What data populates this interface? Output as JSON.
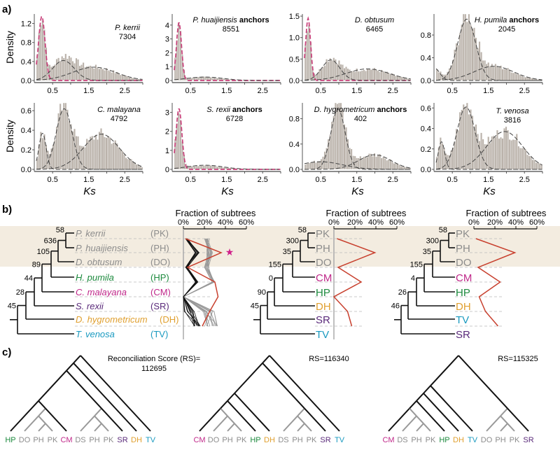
{
  "panel_labels": {
    "a": "a)",
    "b": "b)",
    "c": "c)"
  },
  "colors": {
    "bar": "#bab2aa",
    "fit_red": "#c8407a",
    "fit_dark": "#444444",
    "highlight_band": "#f3ece0",
    "PK": "#8c8c8c",
    "PH": "#8c8c8c",
    "DO": "#8c8c8c",
    "DS": "#8c8c8c",
    "HP": "#1d8a3e",
    "CM": "#c0288a",
    "SR": "#5a2a7a",
    "DH": "#e0a030",
    "TV": "#1a9ac0",
    "red_line": "#c8402e",
    "star": "#d0208a"
  },
  "chart_data": [
    {
      "type": "bar",
      "species": "P. kerrii",
      "suffix": "",
      "count": "7304",
      "ylabel": "Density",
      "xlabel": "",
      "xlim": [
        0.05,
        3.0
      ],
      "ylim": [
        0,
        1.4
      ],
      "yticks": [
        "0.0",
        "0.4",
        "0.8",
        "1.2"
      ],
      "xticks": [
        "0.5",
        "1.5",
        "2.5"
      ],
      "components": [
        {
          "mean": 0.2,
          "sd": 0.09,
          "peak": 1.35,
          "color": "red"
        },
        {
          "mean": 0.8,
          "sd": 0.3,
          "peak": 0.42,
          "color": "dark"
        },
        {
          "mean": 1.65,
          "sd": 0.6,
          "peak": 0.28,
          "color": "dark"
        }
      ]
    },
    {
      "type": "bar",
      "species": "P. huaijiensis",
      "suffix": "anchors",
      "count": "8551",
      "ylabel": "",
      "xlabel": "",
      "xlim": [
        0.05,
        3.0
      ],
      "ylim": [
        0,
        4.8
      ],
      "yticks": [
        "0",
        "1",
        "2",
        "3",
        "4"
      ],
      "xticks": [
        "0.5",
        "1.5",
        "2.5"
      ],
      "components": [
        {
          "mean": 0.18,
          "sd": 0.07,
          "peak": 4.2,
          "color": "red"
        },
        {
          "mean": 0.9,
          "sd": 0.5,
          "peak": 0.25,
          "color": "dark"
        }
      ]
    },
    {
      "type": "bar",
      "species": "D. obtusum",
      "suffix": "",
      "count": "6465",
      "ylabel": "",
      "xlabel": "",
      "xlim": [
        0.05,
        3.0
      ],
      "ylim": [
        0,
        1.55
      ],
      "yticks": [
        "0.0",
        "0.5",
        "1.0",
        "1.5"
      ],
      "xticks": [
        "0.5",
        "1.5",
        "2.5"
      ],
      "components": [
        {
          "mean": 0.15,
          "sd": 0.07,
          "peak": 1.45,
          "color": "red"
        },
        {
          "mean": 0.78,
          "sd": 0.25,
          "peak": 0.48,
          "color": "dark"
        },
        {
          "mean": 1.8,
          "sd": 0.6,
          "peak": 0.27,
          "color": "dark"
        }
      ]
    },
    {
      "type": "bar",
      "species": "H. pumila",
      "suffix": "anchors",
      "count": "2045",
      "ylabel": "",
      "xlabel": "",
      "xlim": [
        0.05,
        3.0
      ],
      "ylim": [
        0,
        1.17
      ],
      "yticks": [
        "0.0",
        "0.4",
        "0.8"
      ],
      "xticks": [
        "0.5",
        "1.5",
        "2.5"
      ],
      "components": [
        {
          "mean": 0.0,
          "sd": 0.15,
          "peak": 0.22,
          "color": "dark"
        },
        {
          "mean": 0.9,
          "sd": 0.25,
          "peak": 1.08,
          "color": "dark"
        },
        {
          "mean": 1.65,
          "sd": 0.55,
          "peak": 0.25,
          "color": "dark"
        }
      ]
    },
    {
      "type": "bar",
      "species": "C. malayana",
      "suffix": "",
      "count": "4792",
      "ylabel": "Density",
      "xlabel": "Ks",
      "xlim": [
        0.05,
        3.0
      ],
      "ylim": [
        0,
        0.68
      ],
      "yticks": [
        "0.0",
        "0.2",
        "0.4",
        "0.6"
      ],
      "xticks": [
        "0.5",
        "1.5",
        "2.5"
      ],
      "components": [
        {
          "mean": 0.22,
          "sd": 0.1,
          "peak": 0.37,
          "color": "dark"
        },
        {
          "mean": 0.82,
          "sd": 0.22,
          "peak": 0.62,
          "color": "dark"
        },
        {
          "mean": 1.85,
          "sd": 0.5,
          "peak": 0.36,
          "color": "dark"
        }
      ]
    },
    {
      "type": "bar",
      "species": "S. rexii",
      "suffix": "anchors",
      "count": "6728",
      "ylabel": "",
      "xlabel": "Ks",
      "xlim": [
        0.05,
        3.0
      ],
      "ylim": [
        0,
        3.5
      ],
      "yticks": [
        "0",
        "1",
        "2",
        "3"
      ],
      "xticks": [
        "0.5",
        "1.5",
        "2.5"
      ],
      "components": [
        {
          "mean": 0.18,
          "sd": 0.08,
          "peak": 3.2,
          "color": "red"
        },
        {
          "mean": 0.9,
          "sd": 0.5,
          "peak": 0.22,
          "color": "dark"
        }
      ]
    },
    {
      "type": "bar",
      "species": "D. hygrometricum",
      "suffix": "anchors",
      "count": "402",
      "ylabel": "",
      "xlabel": "Ks",
      "xlim": [
        0.05,
        3.0
      ],
      "ylim": [
        0,
        1.05
      ],
      "yticks": [
        "0.0",
        "0.4",
        "0.8"
      ],
      "xticks": [
        "0.5",
        "1.5",
        "2.5"
      ],
      "components": [
        {
          "mean": 0.5,
          "sd": 0.6,
          "peak": 0.12,
          "color": "dark"
        },
        {
          "mean": 0.98,
          "sd": 0.2,
          "peak": 0.95,
          "color": "dark"
        },
        {
          "mean": 2.0,
          "sd": 0.45,
          "peak": 0.23,
          "color": "dark"
        }
      ]
    },
    {
      "type": "bar",
      "species": "T. venosa",
      "suffix": "",
      "count": "3816",
      "ylabel": "",
      "xlabel": "Ks",
      "xlim": [
        0.05,
        3.0
      ],
      "ylim": [
        0,
        0.65
      ],
      "yticks": [
        "0.0",
        "0.2",
        "0.4",
        "0.6"
      ],
      "xticks": [
        "0.5",
        "1.5",
        "2.5"
      ],
      "components": [
        {
          "mean": 0.2,
          "sd": 0.09,
          "peak": 0.27,
          "color": "dark"
        },
        {
          "mean": 0.88,
          "sd": 0.25,
          "peak": 0.61,
          "color": "dark"
        },
        {
          "mean": 1.95,
          "sd": 0.5,
          "peak": 0.37,
          "color": "dark"
        }
      ]
    }
  ],
  "species_tree": {
    "taxa": [
      {
        "name": "P. kerrii",
        "abbr": "(PK)",
        "code": "PK"
      },
      {
        "name": "P. huaijiensis",
        "abbr": "(PH)",
        "code": "PH"
      },
      {
        "name": "D. obtusum",
        "abbr": "(DO)",
        "code": "DO"
      },
      {
        "name": "H. pumila",
        "abbr": "(HP)",
        "code": "HP"
      },
      {
        "name": "C. malayana",
        "abbr": "(CM)",
        "code": "CM"
      },
      {
        "name": "S. rexii",
        "abbr": "(SR)",
        "code": "SR"
      },
      {
        "name": "D. hygrometricum",
        "abbr": "(DH)",
        "code": "DH"
      },
      {
        "name": "T. venosa",
        "abbr": "(TV)",
        "code": "TV"
      }
    ],
    "node_support": [
      "58",
      "636",
      "105",
      "89",
      "44",
      "28",
      "45"
    ]
  },
  "alt_trees": [
    {
      "order": [
        "PK",
        "PH",
        "DO",
        "CM",
        "HP",
        "DH",
        "SR",
        "TV"
      ],
      "node_support": [
        "58",
        "300",
        "35",
        "155",
        "0",
        "90",
        "45"
      ]
    },
    {
      "order": [
        "PK",
        "PH",
        "DO",
        "CM",
        "HP",
        "DH",
        "TV",
        "SR"
      ],
      "node_support": [
        "58",
        "300",
        "35",
        "155",
        "4",
        "26",
        "46"
      ]
    }
  ],
  "fraction_plots": {
    "title": "Fraction of subtrees",
    "ticks": [
      "0%",
      "20%",
      "40%",
      "60%"
    ],
    "xlim": [
      0,
      60
    ],
    "red_series": [
      [
        2,
        36,
        4,
        30,
        33,
        25,
        18
      ],
      [
        3,
        39,
        4,
        26,
        0,
        13,
        17
      ],
      [
        2,
        39,
        4,
        25,
        5,
        11,
        23
      ]
    ],
    "black_range": [
      [
        2,
        4
      ],
      [
        11,
        15
      ],
      [
        2,
        4
      ],
      [
        11,
        14
      ],
      [
        0,
        0
      ],
      [
        0,
        15
      ],
      [
        10,
        18
      ]
    ],
    "gray_range": [
      [
        20,
        25
      ],
      [
        22,
        28
      ],
      [
        20,
        24
      ],
      [
        27,
        30
      ],
      [
        0,
        0
      ],
      [
        18,
        30
      ],
      [
        20,
        33
      ]
    ],
    "star_symbol": "★"
  },
  "reconciliation": {
    "trees": [
      {
        "label": "Reconciliation Score (RS)=",
        "score": "112695",
        "leaves": [
          "HP",
          "DO",
          "PH",
          "PK",
          "CM",
          "DS",
          "PH",
          "PK",
          "SR",
          "DH",
          "TV"
        ],
        "topology": [
          [
            [
              [
                "HP",
                [
                  [
                    "DO",
                    [
                      "PH",
                      "PK"
                    ]
                  ],
                  "CM"
                ]
              ],
              [
                [
                  "DS",
                  [
                    "PH",
                    "PK"
                  ]
                ],
                "SR"
              ]
            ],
            "DH"
          ],
          "TV"
        ]
      },
      {
        "label": "",
        "score": "RS=116340",
        "leaves": [
          "CM",
          "DO",
          "PH",
          "PK",
          "HP",
          "DH",
          "DS",
          "PH",
          "PK",
          "SR",
          "TV"
        ],
        "topology": [
          [
            [
              [
                [
                  "CM",
                  [
                    "DO",
                    [
                      "PH",
                      "PK"
                    ]
                  ]
                ],
                "HP"
              ],
              "DH"
            ],
            [
              [
                "DS",
                [
                  "PH",
                  "PK"
                ]
              ],
              "SR"
            ]
          ],
          "TV"
        ]
      },
      {
        "label": "",
        "score": "RS=115325",
        "leaves": [
          "CM",
          "DS",
          "PH",
          "PK",
          "HP",
          "DH",
          "TV",
          "DO",
          "PH",
          "PK",
          "SR"
        ],
        "topology": [
          [
            [
              [
                [
                  "CM",
                  [
                    "DS",
                    [
                      "PH",
                      "PK"
                    ]
                  ]
                ],
                "HP"
              ],
              "DH"
            ],
            "TV"
          ],
          [
            [
              "DO",
              [
                "PH",
                "PK"
              ]
            ],
            "SR"
          ]
        ]
      }
    ]
  }
}
